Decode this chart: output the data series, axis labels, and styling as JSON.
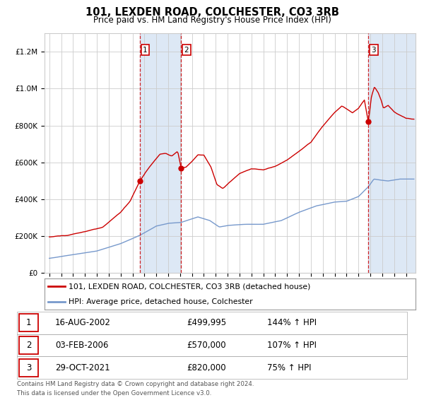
{
  "title": "101, LEXDEN ROAD, COLCHESTER, CO3 3RB",
  "subtitle": "Price paid vs. HM Land Registry's House Price Index (HPI)",
  "legend_line1": "101, LEXDEN ROAD, COLCHESTER, CO3 3RB (detached house)",
  "legend_line2": "HPI: Average price, detached house, Colchester",
  "footer1": "Contains HM Land Registry data © Crown copyright and database right 2024.",
  "footer2": "This data is licensed under the Open Government Licence v3.0.",
  "purchases": [
    {
      "num": 1,
      "date": "16-AUG-2002",
      "price": "£499,995",
      "pct": "144% ↑ HPI"
    },
    {
      "num": 2,
      "date": "03-FEB-2006",
      "price": "£570,000",
      "pct": "107% ↑ HPI"
    },
    {
      "num": 3,
      "date": "29-OCT-2021",
      "price": "£820,000",
      "pct": "75% ↑ HPI"
    }
  ],
  "purchase_dates_num": [
    2002.62,
    2006.09,
    2021.83
  ],
  "purchase_prices": [
    499995,
    570000,
    820000
  ],
  "red_color": "#cc0000",
  "blue_color": "#7799cc",
  "bg_color": "#ffffff",
  "grid_color": "#cccccc",
  "shade_color": "#dde8f5",
  "ylim": [
    0,
    1300000
  ],
  "xlim_start": 1994.6,
  "xlim_end": 2025.8
}
